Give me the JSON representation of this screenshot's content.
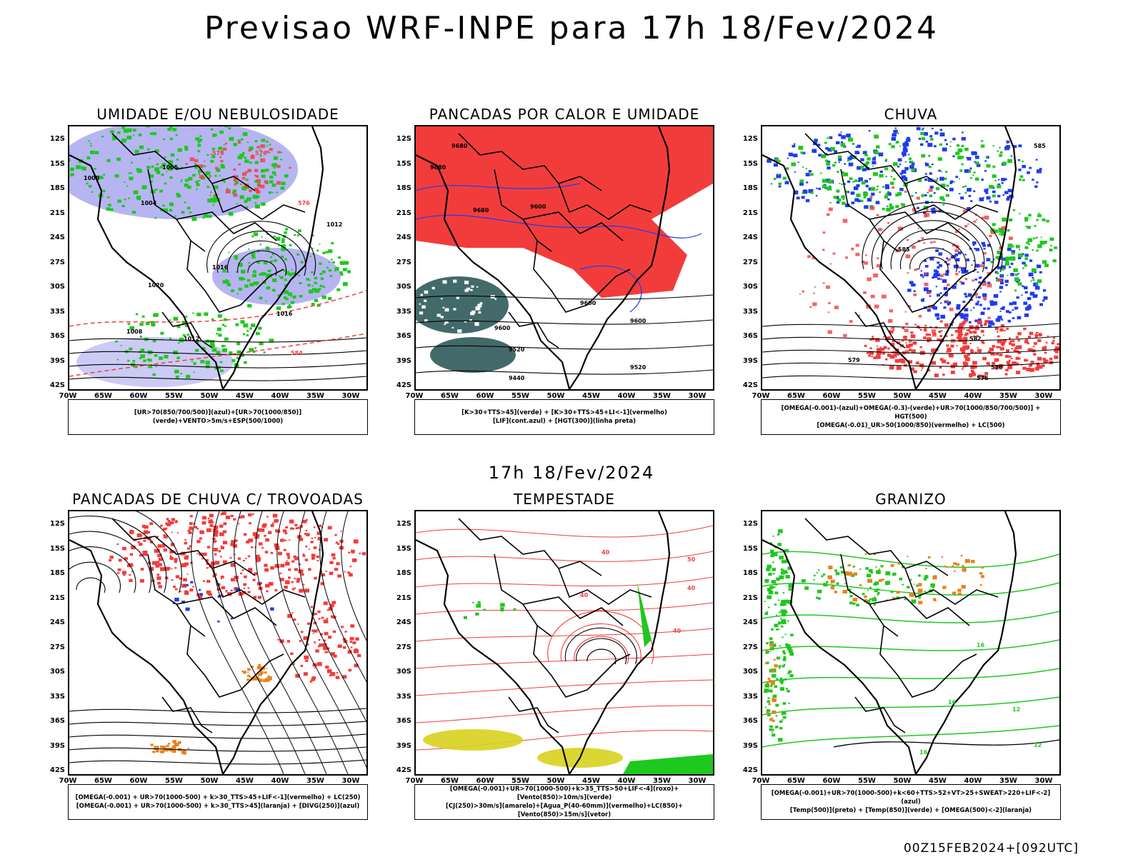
{
  "header": {
    "title": "Previsao WRF-INPE  para 17h 18/Fev/2024"
  },
  "middle": {
    "subtitle": "17h 18/Fev/2024"
  },
  "footer": {
    "run": "00Z15FEB2024+[092UTC]"
  },
  "axes": {
    "lat_labels": [
      "12S",
      "15S",
      "18S",
      "21S",
      "24S",
      "27S",
      "30S",
      "33S",
      "36S",
      "39S",
      "42S"
    ],
    "lon_labels": [
      "70W",
      "65W",
      "60W",
      "55W",
      "50W",
      "45W",
      "40W",
      "35W",
      "30W"
    ]
  },
  "colors": {
    "red": "#f23c3c",
    "green": "#1ec81e",
    "blue": "#1e3cf0",
    "lavender": "#a9a8f0",
    "darkteal": "#2f5a5a",
    "orange": "#e8821e",
    "yellow": "#d8d21e",
    "black": "#000000"
  },
  "panels": [
    {
      "title": "UMIDADE E/OU NEBULOSIDADE",
      "legend": [
        "[UR>70(850/700/500)](azul)+[UR>70(1000/850)](verde)+VENTO>5m/s+ESP(500/1000)"
      ],
      "contour_labels": [
        "1008",
        "1005",
        "1004",
        "1012",
        "1016",
        "1020",
        "1008",
        "1012",
        "1016",
        "576",
        "576",
        "576",
        "584"
      ]
    },
    {
      "title": "PANCADAS POR CALOR E UMIDADE",
      "legend": [
        "[K>30+TTS>45](verde) + [K>30+TTS>45+LI<-1](vermelho)",
        "[LIF](cont.azul) + [HGT(300)](linha preta)"
      ],
      "contour_labels": [
        "9680",
        "9680",
        "9680",
        "9600",
        "9600",
        "9600",
        "9600",
        "9520",
        "9520",
        "9440"
      ]
    },
    {
      "title": "CHUVA",
      "legend": [
        "[OMEGA(-0.001)-(azul)+OMEGA(-0.3)-(verde)+UR>70(1000/850/700/500)] + HGT(500)",
        "[OMEGA(-0.01)_UR>50(1000/850)(vermelho) + LC(500)"
      ],
      "contour_labels": [
        "585",
        "585",
        "582",
        "579",
        "576",
        "576",
        "579"
      ]
    },
    {
      "title": "PANCADAS DE CHUVA C/ TROVOADAS",
      "legend": [
        "[OMEGA(-0.001) + UR>70(1000-500) + k>30_TTS>45+LIF<-1](vermelho) + LC(250)",
        "[OMEGA(-0.001) + UR>70(1000-500) + k>30_TTS>45](laranja) + [DIVG(250)](azul)"
      ],
      "contour_labels": []
    },
    {
      "title": "TEMPESTADE",
      "legend": [
        "[OMEGA(-0.001)+UR>70(1000-500)+k>35_TTS>50+LIF<-4](roxo)+[Vento(850)>10m/s](verde)",
        "[CJ(250)>30m/s](amarelo)+[Agua_P(40-60mm)](vermelho)+LC(850)+[Vento(850)>15m/s](vetor)"
      ],
      "contour_labels": [
        "40",
        "40",
        "40",
        "40",
        "50"
      ]
    },
    {
      "title": "GRANIZO",
      "legend": [
        "[OMEGA(-0.001)+UR>70(1000-500)+k<60+TTS>52+VT>25+SWEAT>220+LIF<-2](azul)",
        "[Temp(500)](preto) + [Temp(850)](verde) + [OMEGA(500)<-2](laranja)"
      ],
      "contour_labels": [
        "16",
        "16",
        "12",
        "12",
        "16"
      ]
    }
  ]
}
